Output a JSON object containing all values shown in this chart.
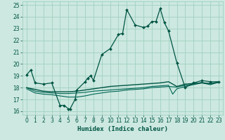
{
  "xlabel": "Humidex (Indice chaleur)",
  "xlim": [
    -0.5,
    23.5
  ],
  "ylim": [
    15.7,
    25.3
  ],
  "yticks": [
    16,
    17,
    18,
    19,
    20,
    21,
    22,
    23,
    24,
    25
  ],
  "xticks": [
    0,
    1,
    2,
    3,
    4,
    5,
    6,
    7,
    8,
    9,
    10,
    11,
    12,
    13,
    14,
    15,
    16,
    17,
    18,
    19,
    20,
    21,
    22,
    23
  ],
  "bg_color": "#cce8e0",
  "grid_color": "#99ccbb",
  "line_color_dark": "#005544",
  "line_color_mid": "#006655",
  "line1_x": [
    0,
    0.5,
    1,
    2,
    3,
    4,
    4.5,
    5,
    5.2,
    5.8,
    6,
    7,
    7.3,
    7.7,
    8,
    9,
    10,
    11,
    11.5,
    12,
    13,
    14,
    14.5,
    15,
    15.5,
    16,
    16.5,
    17,
    18,
    19,
    20,
    21,
    22,
    23
  ],
  "line1_y": [
    19.1,
    19.5,
    18.4,
    18.3,
    18.4,
    16.5,
    16.5,
    16.2,
    16.2,
    17.0,
    17.8,
    18.5,
    18.8,
    19.0,
    18.6,
    20.8,
    21.3,
    22.5,
    22.6,
    24.6,
    23.3,
    23.1,
    23.2,
    23.6,
    23.6,
    24.7,
    23.5,
    22.8,
    20.1,
    18.0,
    18.4,
    18.6,
    18.5,
    18.5
  ],
  "line2_x": [
    0,
    1,
    2,
    3,
    4,
    5,
    6,
    7,
    8,
    9,
    10,
    11,
    12,
    13,
    14,
    15,
    16,
    17,
    18,
    19,
    20,
    21,
    22,
    23
  ],
  "line2_y": [
    18.0,
    17.85,
    17.7,
    17.65,
    17.65,
    17.65,
    17.7,
    17.8,
    17.9,
    18.0,
    18.1,
    18.15,
    18.2,
    18.25,
    18.3,
    18.35,
    18.4,
    18.5,
    18.1,
    18.3,
    18.35,
    18.4,
    18.35,
    18.45
  ],
  "line3_x": [
    0,
    1,
    2,
    3,
    4,
    5,
    6,
    7,
    8,
    9,
    10,
    11,
    12,
    13,
    14,
    15,
    16,
    17,
    17.5,
    18,
    19,
    20,
    21,
    22,
    23
  ],
  "line3_y": [
    18.0,
    17.7,
    17.6,
    17.55,
    17.5,
    17.5,
    17.55,
    17.6,
    17.7,
    17.75,
    17.8,
    17.85,
    17.9,
    17.95,
    18.0,
    18.1,
    18.15,
    18.2,
    17.45,
    17.9,
    18.1,
    18.25,
    18.4,
    18.25,
    18.45
  ],
  "line4_x": [
    0,
    1,
    2,
    3,
    4,
    5,
    6,
    7,
    8,
    9,
    10,
    11,
    12,
    13,
    14,
    15,
    16,
    17,
    18,
    19,
    20,
    21,
    22,
    23
  ],
  "line4_y": [
    17.9,
    17.55,
    17.45,
    17.4,
    17.3,
    17.2,
    17.2,
    17.3,
    17.45,
    17.55,
    17.65,
    17.7,
    17.8,
    17.85,
    17.9,
    18.0,
    18.05,
    18.1,
    18.05,
    18.2,
    18.3,
    18.45,
    18.3,
    18.5
  ]
}
